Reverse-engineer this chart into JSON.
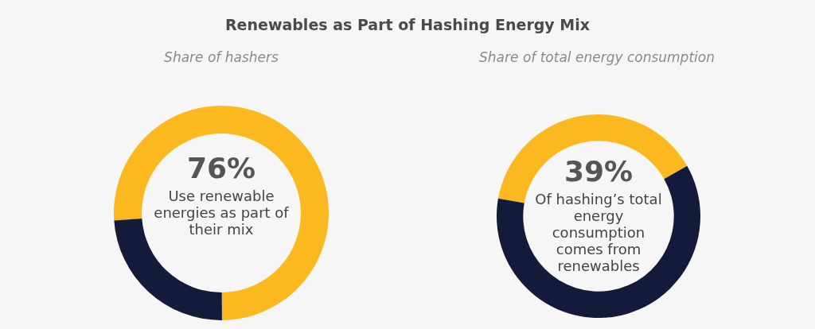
{
  "chart_data": [
    {
      "type": "donut",
      "title": "Renewables as Part of Hashing Energy Mix",
      "subtitle": "Share of hashers",
      "categories": [
        null,
        null
      ],
      "values": [
        76,
        24
      ],
      "colors": [
        "#fbb91f",
        "#141a3a"
      ],
      "value_labels": [
        "76%",
        null
      ],
      "annotations": [
        "Use renewable energies as part of their mix"
      ]
    },
    {
      "type": "donut",
      "subtitle": "Share of total energy consumption",
      "categories": [
        null,
        null
      ],
      "values": [
        39,
        61
      ],
      "colors": [
        "#fbb91f",
        "#141a3a"
      ],
      "value_labels": [
        "39%",
        null
      ],
      "annotations": [
        "Of hashing’s total energy consumption comes from renewables"
      ]
    }
  ]
}
